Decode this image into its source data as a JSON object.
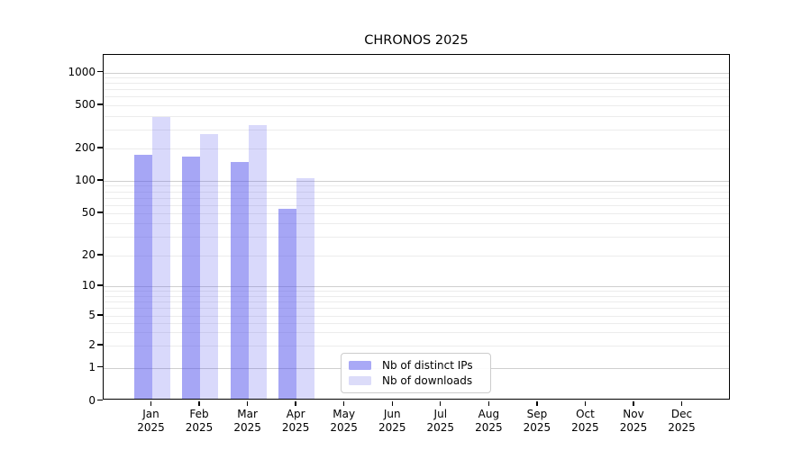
{
  "figure": {
    "title": "CHRONOS 2025"
  },
  "chart_data": {
    "type": "bar",
    "title": "CHRONOS 2025",
    "xlabel": "",
    "ylabel": "",
    "yscale": "symlog",
    "grid": "horizontal",
    "legend_position": "lower center-left",
    "year": "2025",
    "categories": [
      "Jan",
      "Feb",
      "Mar",
      "Apr",
      "May",
      "Jun",
      "Jul",
      "Aug",
      "Sep",
      "Oct",
      "Nov",
      "Dec"
    ],
    "y_ticks": [
      0,
      1,
      2,
      5,
      10,
      20,
      50,
      100,
      200,
      500,
      1000
    ],
    "y_tick_labels": [
      "0",
      "1",
      "2",
      "5",
      "10",
      "20",
      "50",
      "100",
      "200",
      "500",
      "1000"
    ],
    "ylim": [
      0,
      1450
    ],
    "series": [
      {
        "name": "Nb of distinct IPs",
        "fill_rgba": "rgba(84,84,235,0.52)",
        "swatch_hex": "#a9a9f6",
        "values": [
          175,
          168,
          150,
          55,
          0,
          0,
          0,
          0,
          0,
          0,
          0,
          0
        ]
      },
      {
        "name": "Nb of downloads",
        "fill_rgba": "rgba(84,84,235,0.22)",
        "swatch_hex": "#dcdcf9",
        "values": [
          390,
          270,
          330,
          105,
          0,
          0,
          0,
          0,
          0,
          0,
          0,
          0
        ]
      }
    ]
  }
}
